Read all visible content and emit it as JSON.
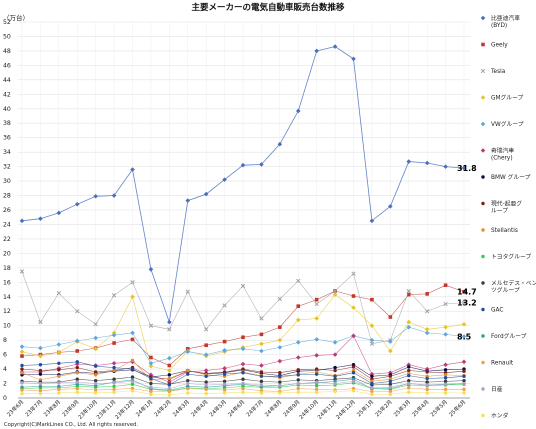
{
  "chart_data": {
    "type": "line",
    "title": "主要メーカーの電気自動車販売台数推移",
    "unit_label": "（万台）",
    "ylim": [
      0,
      52
    ],
    "yticks": [
      0,
      2,
      4,
      6,
      8,
      10,
      12,
      14,
      16,
      18,
      20,
      22,
      24,
      26,
      28,
      30,
      32,
      34,
      36,
      38,
      40,
      42,
      44,
      46,
      48,
      50,
      52
    ],
    "grid": true,
    "legend_position": "right",
    "categories": [
      "23年6月",
      "23年7月",
      "23年8月",
      "23年9月",
      "23年10月",
      "23年11月",
      "23年12月",
      "24年1月",
      "24年2月",
      "24年3月",
      "24年4月",
      "24年5月",
      "24年6月",
      "24年7月",
      "24年8月",
      "24年9月",
      "24年10月",
      "24年11月",
      "24年12月",
      "25年1月",
      "25年2月",
      "25年3月",
      "25年4月",
      "25年5月",
      "25年6月"
    ],
    "series": [
      {
        "name": "比亜迪汽車\n(BYD)",
        "color": "#4a6fc1",
        "marker": "diamond",
        "values": [
          24.5,
          24.8,
          25.6,
          26.8,
          27.9,
          28.0,
          31.6,
          17.8,
          10.5,
          27.3,
          28.2,
          30.2,
          32.2,
          32.3,
          35.1,
          39.7,
          48.0,
          48.6,
          46.9,
          24.5,
          26.5,
          32.7,
          32.5,
          32.0,
          31.8
        ]
      },
      {
        "name": "Geely",
        "color": "#c0392b",
        "marker": "square",
        "values": [
          5.8,
          6.0,
          6.3,
          6.5,
          6.9,
          7.6,
          8.1,
          5.6,
          4.5,
          6.8,
          7.3,
          7.8,
          8.4,
          8.8,
          9.8,
          12.7,
          13.6,
          14.8,
          14.1,
          13.6,
          11.2,
          14.3,
          14.4,
          15.6,
          14.7
        ]
      },
      {
        "name": "Tesla",
        "color": "#a0a0a0",
        "marker": "x",
        "values": [
          17.5,
          10.5,
          14.5,
          12.0,
          10.2,
          14.2,
          16.0,
          10.0,
          9.5,
          14.7,
          9.5,
          12.8,
          15.5,
          11.0,
          13.7,
          16.2,
          13.0,
          14.8,
          17.2,
          7.5,
          8.0,
          14.8,
          12.0,
          13.0,
          13.2
        ]
      },
      {
        "name": "GMグループ",
        "color": "#e6c229",
        "marker": "diamond",
        "values": [
          6.4,
          5.8,
          6.3,
          7.8,
          6.8,
          9.0,
          14.0,
          4.4,
          3.8,
          6.5,
          5.8,
          6.4,
          7.0,
          7.5,
          8.0,
          10.8,
          11.0,
          14.3,
          12.5,
          10.0,
          6.5,
          10.5,
          9.5,
          9.8,
          10.2
        ]
      },
      {
        "name": "VWグループ",
        "color": "#5aa9dc",
        "marker": "diamond",
        "values": [
          7.1,
          6.9,
          7.4,
          7.9,
          8.3,
          8.7,
          9.0,
          4.8,
          5.5,
          6.4,
          6.0,
          6.6,
          6.8,
          6.5,
          7.0,
          7.7,
          8.1,
          7.7,
          8.6,
          8.0,
          7.8,
          9.8,
          9.0,
          8.8,
          8.5
        ]
      },
      {
        "name": "奇瑞汽車\n(Chery)",
        "color": "#c0397a",
        "marker": "diamond",
        "values": [
          3.6,
          3.6,
          4.1,
          4.7,
          4.5,
          4.8,
          5.0,
          3.2,
          2.2,
          3.6,
          3.8,
          4.1,
          4.7,
          4.5,
          5.1,
          5.6,
          5.9,
          6.0,
          8.6,
          3.3,
          3.5,
          4.6,
          4.0,
          4.6,
          5.0
        ]
      },
      {
        "name": "BMW グループ",
        "color": "#0a0a40",
        "marker": "circle",
        "values": [
          3.2,
          3.3,
          3.2,
          3.6,
          3.4,
          3.7,
          3.9,
          2.9,
          3.2,
          3.8,
          3.3,
          3.5,
          3.9,
          3.4,
          3.1,
          3.7,
          3.8,
          4.2,
          4.6,
          3.0,
          3.2,
          4.3,
          3.7,
          3.9,
          4.0
        ]
      },
      {
        "name": "現代-起亜グ\nループ",
        "color": "#7f1d1d",
        "marker": "circle",
        "values": [
          4.0,
          3.8,
          3.9,
          4.2,
          3.6,
          3.8,
          4.2,
          2.9,
          2.6,
          3.7,
          3.4,
          3.6,
          4.0,
          3.6,
          3.5,
          3.9,
          4.0,
          3.8,
          4.3,
          2.6,
          3.0,
          3.8,
          3.6,
          3.5,
          3.7
        ]
      },
      {
        "name": "Stellantis",
        "color": "#e08e2d",
        "marker": "circle",
        "values": [
          3.5,
          2.5,
          3.0,
          3.5,
          3.2,
          3.8,
          5.2,
          2.5,
          2.7,
          3.8,
          3.2,
          3.0,
          3.6,
          3.1,
          2.8,
          3.3,
          3.6,
          3.1,
          3.8,
          2.3,
          2.6,
          3.4,
          3.0,
          3.2,
          3.1
        ]
      },
      {
        "name": "トヨタグループ",
        "color": "#2ecc40",
        "marker": "circle",
        "values": [
          1.3,
          1.4,
          1.4,
          1.6,
          1.5,
          1.6,
          1.9,
          1.2,
          1.0,
          1.4,
          1.3,
          1.4,
          1.6,
          1.5,
          1.5,
          1.8,
          1.7,
          1.8,
          2.1,
          1.3,
          1.2,
          1.8,
          1.7,
          1.8,
          1.9
        ]
      },
      {
        "name": "メルセデス・ベン\nツグループ",
        "color": "#3a3a3a",
        "marker": "circle",
        "values": [
          2.3,
          2.2,
          2.2,
          2.6,
          2.4,
          2.6,
          2.9,
          2.0,
          1.9,
          2.4,
          2.2,
          2.3,
          2.6,
          2.3,
          2.2,
          2.5,
          2.4,
          2.6,
          2.8,
          1.8,
          1.9,
          2.4,
          2.2,
          2.3,
          2.4
        ]
      },
      {
        "name": "GAC",
        "color": "#1f4e9e",
        "marker": "circle",
        "values": [
          4.5,
          4.6,
          4.8,
          5.0,
          4.4,
          4.2,
          4.0,
          2.7,
          1.8,
          3.3,
          3.0,
          3.3,
          3.5,
          3.0,
          3.0,
          3.2,
          3.3,
          3.0,
          3.5,
          2.0,
          2.3,
          3.1,
          2.7,
          2.8,
          3.0
        ]
      },
      {
        "name": "Fordグループ",
        "color": "#2aa198",
        "marker": "circle",
        "values": [
          1.5,
          1.6,
          1.6,
          1.9,
          1.7,
          2.2,
          2.5,
          1.3,
          1.1,
          1.6,
          1.5,
          1.7,
          1.9,
          1.6,
          1.7,
          2.0,
          2.1,
          2.3,
          2.6,
          1.3,
          1.3,
          2.0,
          1.8,
          1.9,
          2.0
        ]
      },
      {
        "name": "Renault",
        "color": "#f39c50",
        "marker": "circle",
        "values": [
          1.1,
          1.0,
          1.2,
          1.3,
          1.1,
          1.2,
          1.3,
          0.9,
          0.9,
          1.3,
          1.2,
          1.1,
          1.3,
          1.0,
          0.9,
          1.3,
          1.2,
          1.1,
          1.3,
          0.9,
          0.9,
          1.4,
          1.2,
          1.2,
          1.2
        ]
      },
      {
        "name": "日産",
        "color": "#b0a0c8",
        "marker": "circle",
        "values": [
          2.1,
          2.0,
          2.1,
          2.2,
          2.0,
          2.1,
          2.3,
          1.5,
          1.3,
          2.0,
          1.8,
          1.9,
          2.0,
          1.8,
          1.7,
          2.0,
          2.2,
          2.0,
          2.3,
          1.4,
          1.5,
          2.0,
          1.8,
          1.9,
          2.0
        ]
      },
      {
        "name": "ホンダ",
        "color": "#f5e050",
        "marker": "circle",
        "values": [
          0.6,
          0.6,
          0.7,
          0.8,
          0.7,
          0.8,
          1.0,
          0.5,
          0.4,
          0.7,
          0.6,
          0.7,
          0.8,
          0.7,
          0.7,
          0.8,
          0.8,
          0.9,
          1.0,
          0.5,
          0.5,
          0.8,
          0.7,
          0.7,
          0.7
        ]
      }
    ],
    "data_labels": [
      {
        "text": "31.8",
        "series": 0
      },
      {
        "text": "14.7",
        "series": 1
      },
      {
        "text": "13.2",
        "series": 2
      },
      {
        "text": "8.5",
        "series": 4
      }
    ]
  },
  "copyright": "Copyright(C)MarkLines CO., Ltd. All rights reserved."
}
